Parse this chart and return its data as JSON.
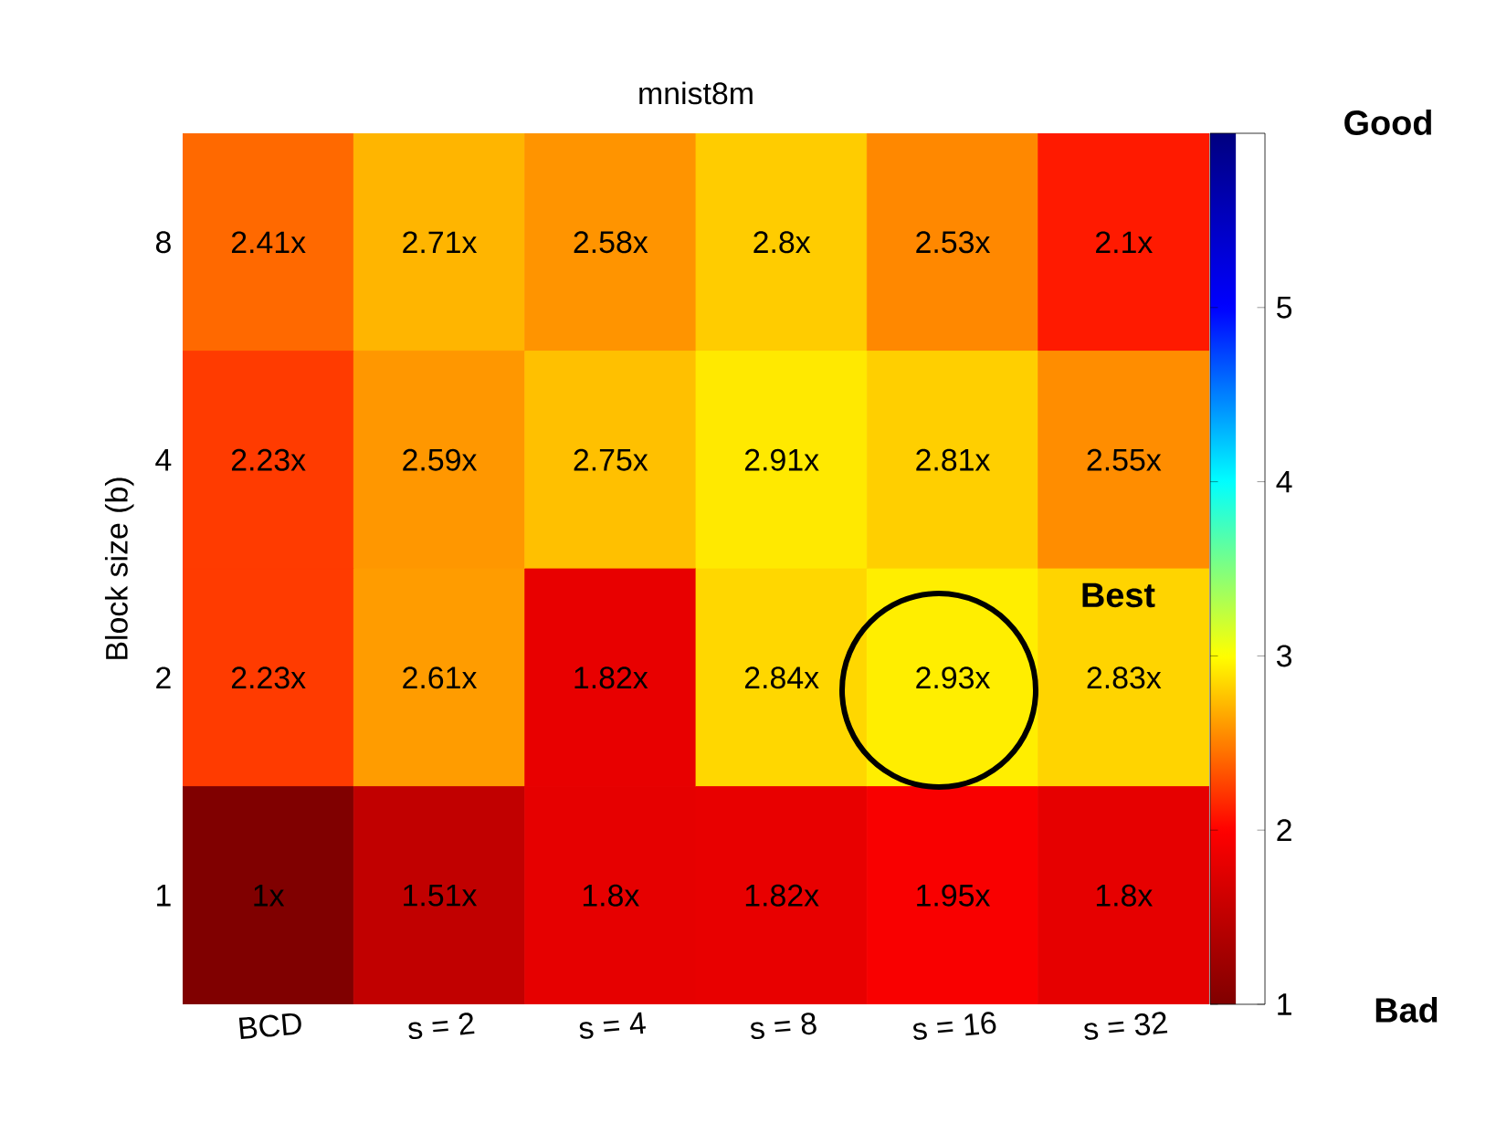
{
  "chart_data": {
    "type": "heatmap",
    "title": "mnist8m",
    "ylabel": "Block size (b)",
    "categories": [
      "BCD",
      "s = 2",
      "s = 4",
      "s = 8",
      "s = 16",
      "s = 32"
    ],
    "y_categories": [
      "8",
      "4",
      "2",
      "1"
    ],
    "cells": [
      [
        2.41,
        2.71,
        2.58,
        2.8,
        2.53,
        2.1
      ],
      [
        2.23,
        2.59,
        2.75,
        2.91,
        2.81,
        2.55
      ],
      [
        2.23,
        2.61,
        1.82,
        2.84,
        2.93,
        2.83
      ],
      [
        1,
        1.51,
        1.8,
        1.82,
        1.95,
        1.8
      ]
    ],
    "cell_labels": [
      [
        "2.41x",
        "2.71x",
        "2.58x",
        "2.8x",
        "2.53x",
        "2.1x"
      ],
      [
        "2.23x",
        "2.59x",
        "2.75x",
        "2.91x",
        "2.81x",
        "2.55x"
      ],
      [
        "2.23x",
        "2.61x",
        "1.82x",
        "2.84x",
        "2.93x",
        "2.83x"
      ],
      [
        "1x",
        "1.51x",
        "1.8x",
        "1.82x",
        "1.95x",
        "1.8x"
      ]
    ],
    "clim": [
      1,
      6
    ],
    "cticks": [
      1,
      2,
      3,
      4,
      5
    ],
    "annotations": [
      "Best",
      "Good",
      "Bad"
    ]
  }
}
